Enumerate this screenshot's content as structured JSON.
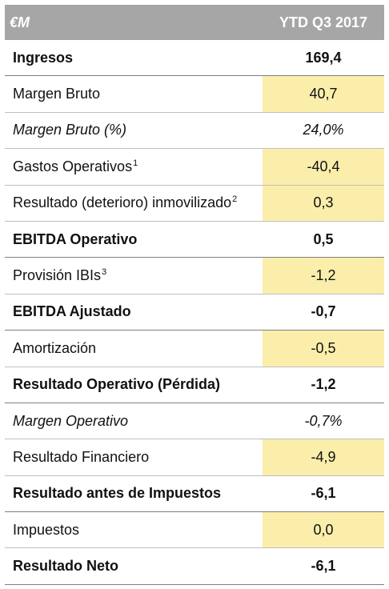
{
  "header": {
    "unit_label": "€M",
    "period_label": "YTD Q3 2017"
  },
  "rows": [
    {
      "label": "Ingresos",
      "sup": "",
      "value": "169,4",
      "style": "bold"
    },
    {
      "label": "Margen Bruto",
      "sup": "",
      "value": "40,7",
      "style": "plain"
    },
    {
      "label": "Margen Bruto (%)",
      "sup": "",
      "value": "24,0%",
      "style": "italic"
    },
    {
      "label": "Gastos Operativos",
      "sup": "1",
      "value": "-40,4",
      "style": "plain"
    },
    {
      "label": "Resultado (deterioro) inmovilizado",
      "sup": "2",
      "value": "0,3",
      "style": "plain"
    },
    {
      "label": "EBITDA Operativo",
      "sup": "",
      "value": "0,5",
      "style": "bold"
    },
    {
      "label": "Provisión IBIs",
      "sup": "3",
      "value": "-1,2",
      "style": "plain"
    },
    {
      "label": "EBITDA Ajustado",
      "sup": "",
      "value": "-0,7",
      "style": "bold"
    },
    {
      "label": "Amortización",
      "sup": "",
      "value": "-0,5",
      "style": "plain"
    },
    {
      "label": "Resultado Operativo (Pérdida)",
      "sup": "",
      "value": "-1,2",
      "style": "bold"
    },
    {
      "label": "Margen Operativo",
      "sup": "",
      "value": "-0,7%",
      "style": "italic"
    },
    {
      "label": "Resultado Financiero",
      "sup": "",
      "value": "-4,9",
      "style": "plain"
    },
    {
      "label": "Resultado antes de Impuestos",
      "sup": "",
      "value": "-6,1",
      "style": "bold"
    },
    {
      "label": "Impuestos",
      "sup": "",
      "value": "0,0",
      "style": "plain"
    },
    {
      "label": "Resultado Neto",
      "sup": "",
      "value": "-6,1",
      "style": "bold"
    }
  ]
}
